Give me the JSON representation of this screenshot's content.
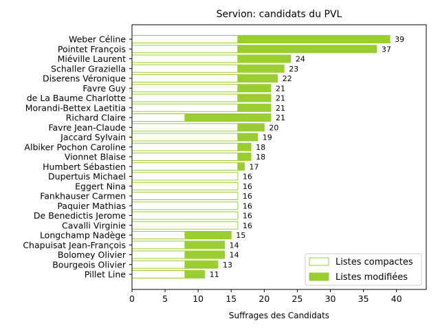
{
  "chart_data": {
    "type": "bar",
    "orientation": "horizontal",
    "stacked": true,
    "title": "Servion: candidats du PVL",
    "xlabel": "Suffrages des Candidats",
    "ylabel": "",
    "xlim": [
      0,
      44.5
    ],
    "xticks": [
      0,
      5,
      10,
      15,
      20,
      25,
      30,
      35,
      40
    ],
    "grid": false,
    "legend_position": "bottom-right",
    "colors": {
      "modified": "#9acd32",
      "compact_edge": "#9acd32",
      "compact_fill": "#ffffff"
    },
    "categories": [
      "Weber Céline",
      "Pointet François",
      "Miéville Laurent",
      "Schaller Graziella",
      "Diserens Véronique",
      "Favre Guy",
      "de La Baume Charlotte",
      "Morandi-Bettex Laetitia",
      "Richard Claire",
      "Favre Jean-Claude",
      "Jaccard Sylvain",
      "Albiker Pochon Caroline",
      "Vionnet Blaise",
      "Humbert Sébastien",
      "Dupertuis Michael",
      "Eggert Nina",
      "Fankhauser Carmen",
      "Paquier Mathias",
      "De Benedictis Jerome",
      "Cavalli Virginie",
      "Longchamp Nadège",
      "Chapuisat Jean-François",
      "Bolomey Olivier",
      "Bourgeois Olivier",
      "Pillet Line"
    ],
    "series": [
      {
        "name": "Listes compactes",
        "values": [
          16,
          16,
          16,
          16,
          16,
          16,
          16,
          16,
          8,
          16,
          16,
          16,
          16,
          16,
          16,
          16,
          16,
          16,
          16,
          16,
          8,
          8,
          8,
          8,
          8
        ]
      },
      {
        "name": "Listes modifiées",
        "values": [
          23,
          21,
          8,
          7,
          6,
          5,
          5,
          5,
          13,
          4,
          3,
          2,
          2,
          1,
          0,
          0,
          0,
          0,
          0,
          0,
          7,
          6,
          6,
          5,
          3
        ]
      }
    ],
    "totals": [
      39,
      37,
      24,
      23,
      22,
      21,
      21,
      21,
      21,
      20,
      19,
      18,
      18,
      17,
      16,
      16,
      16,
      16,
      16,
      16,
      15,
      14,
      14,
      13,
      11
    ]
  }
}
